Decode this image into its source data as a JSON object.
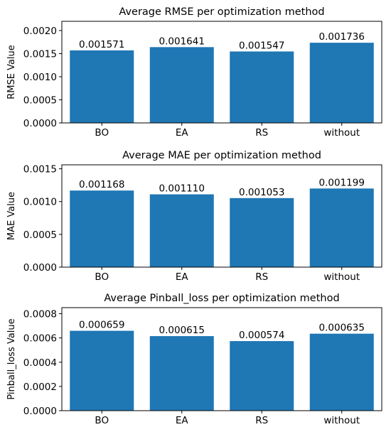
{
  "chart_data": [
    {
      "type": "bar",
      "title": "Average RMSE per optimization method",
      "xlabel": "",
      "ylabel": "RMSE Value",
      "categories": [
        "BO",
        "EA",
        "RS",
        "without"
      ],
      "values": [
        0.001571,
        0.001641,
        0.001547,
        0.001736
      ],
      "value_labels": [
        "0.001571",
        "0.001641",
        "0.001547",
        "0.001736"
      ],
      "yticks": [
        "0.0000",
        "0.0005",
        "0.0010",
        "0.0015",
        "0.0020"
      ],
      "ytick_values": [
        0,
        0.0005,
        0.001,
        0.0015,
        0.002
      ],
      "ylim": [
        0,
        0.0022
      ],
      "grid": false,
      "bar_color": "#1f77b4"
    },
    {
      "type": "bar",
      "title": "Average MAE per optimization method",
      "xlabel": "",
      "ylabel": "MAE Value",
      "categories": [
        "BO",
        "EA",
        "RS",
        "without"
      ],
      "values": [
        0.001168,
        0.00111,
        0.001053,
        0.001199
      ],
      "value_labels": [
        "0.001168",
        "0.001110",
        "0.001053",
        "0.001199"
      ],
      "yticks": [
        "0.0000",
        "0.0005",
        "0.0010",
        "0.0015"
      ],
      "ytick_values": [
        0,
        0.0005,
        0.001,
        0.0015
      ],
      "ylim": [
        0,
        0.00156
      ],
      "grid": false,
      "bar_color": "#1f77b4"
    },
    {
      "type": "bar",
      "title": "Average Pinball_loss per optimization method",
      "xlabel": "",
      "ylabel": "Pinball_loss Value",
      "categories": [
        "BO",
        "EA",
        "RS",
        "without"
      ],
      "values": [
        0.000659,
        0.000615,
        0.000574,
        0.000635
      ],
      "value_labels": [
        "0.000659",
        "0.000615",
        "0.000574",
        "0.000635"
      ],
      "yticks": [
        "0.0000",
        "0.0002",
        "0.0004",
        "0.0006",
        "0.0008"
      ],
      "ytick_values": [
        0,
        0.0002,
        0.0004,
        0.0006,
        0.0008
      ],
      "ylim": [
        0,
        0.00085
      ],
      "grid": false,
      "bar_color": "#1f77b4"
    }
  ]
}
